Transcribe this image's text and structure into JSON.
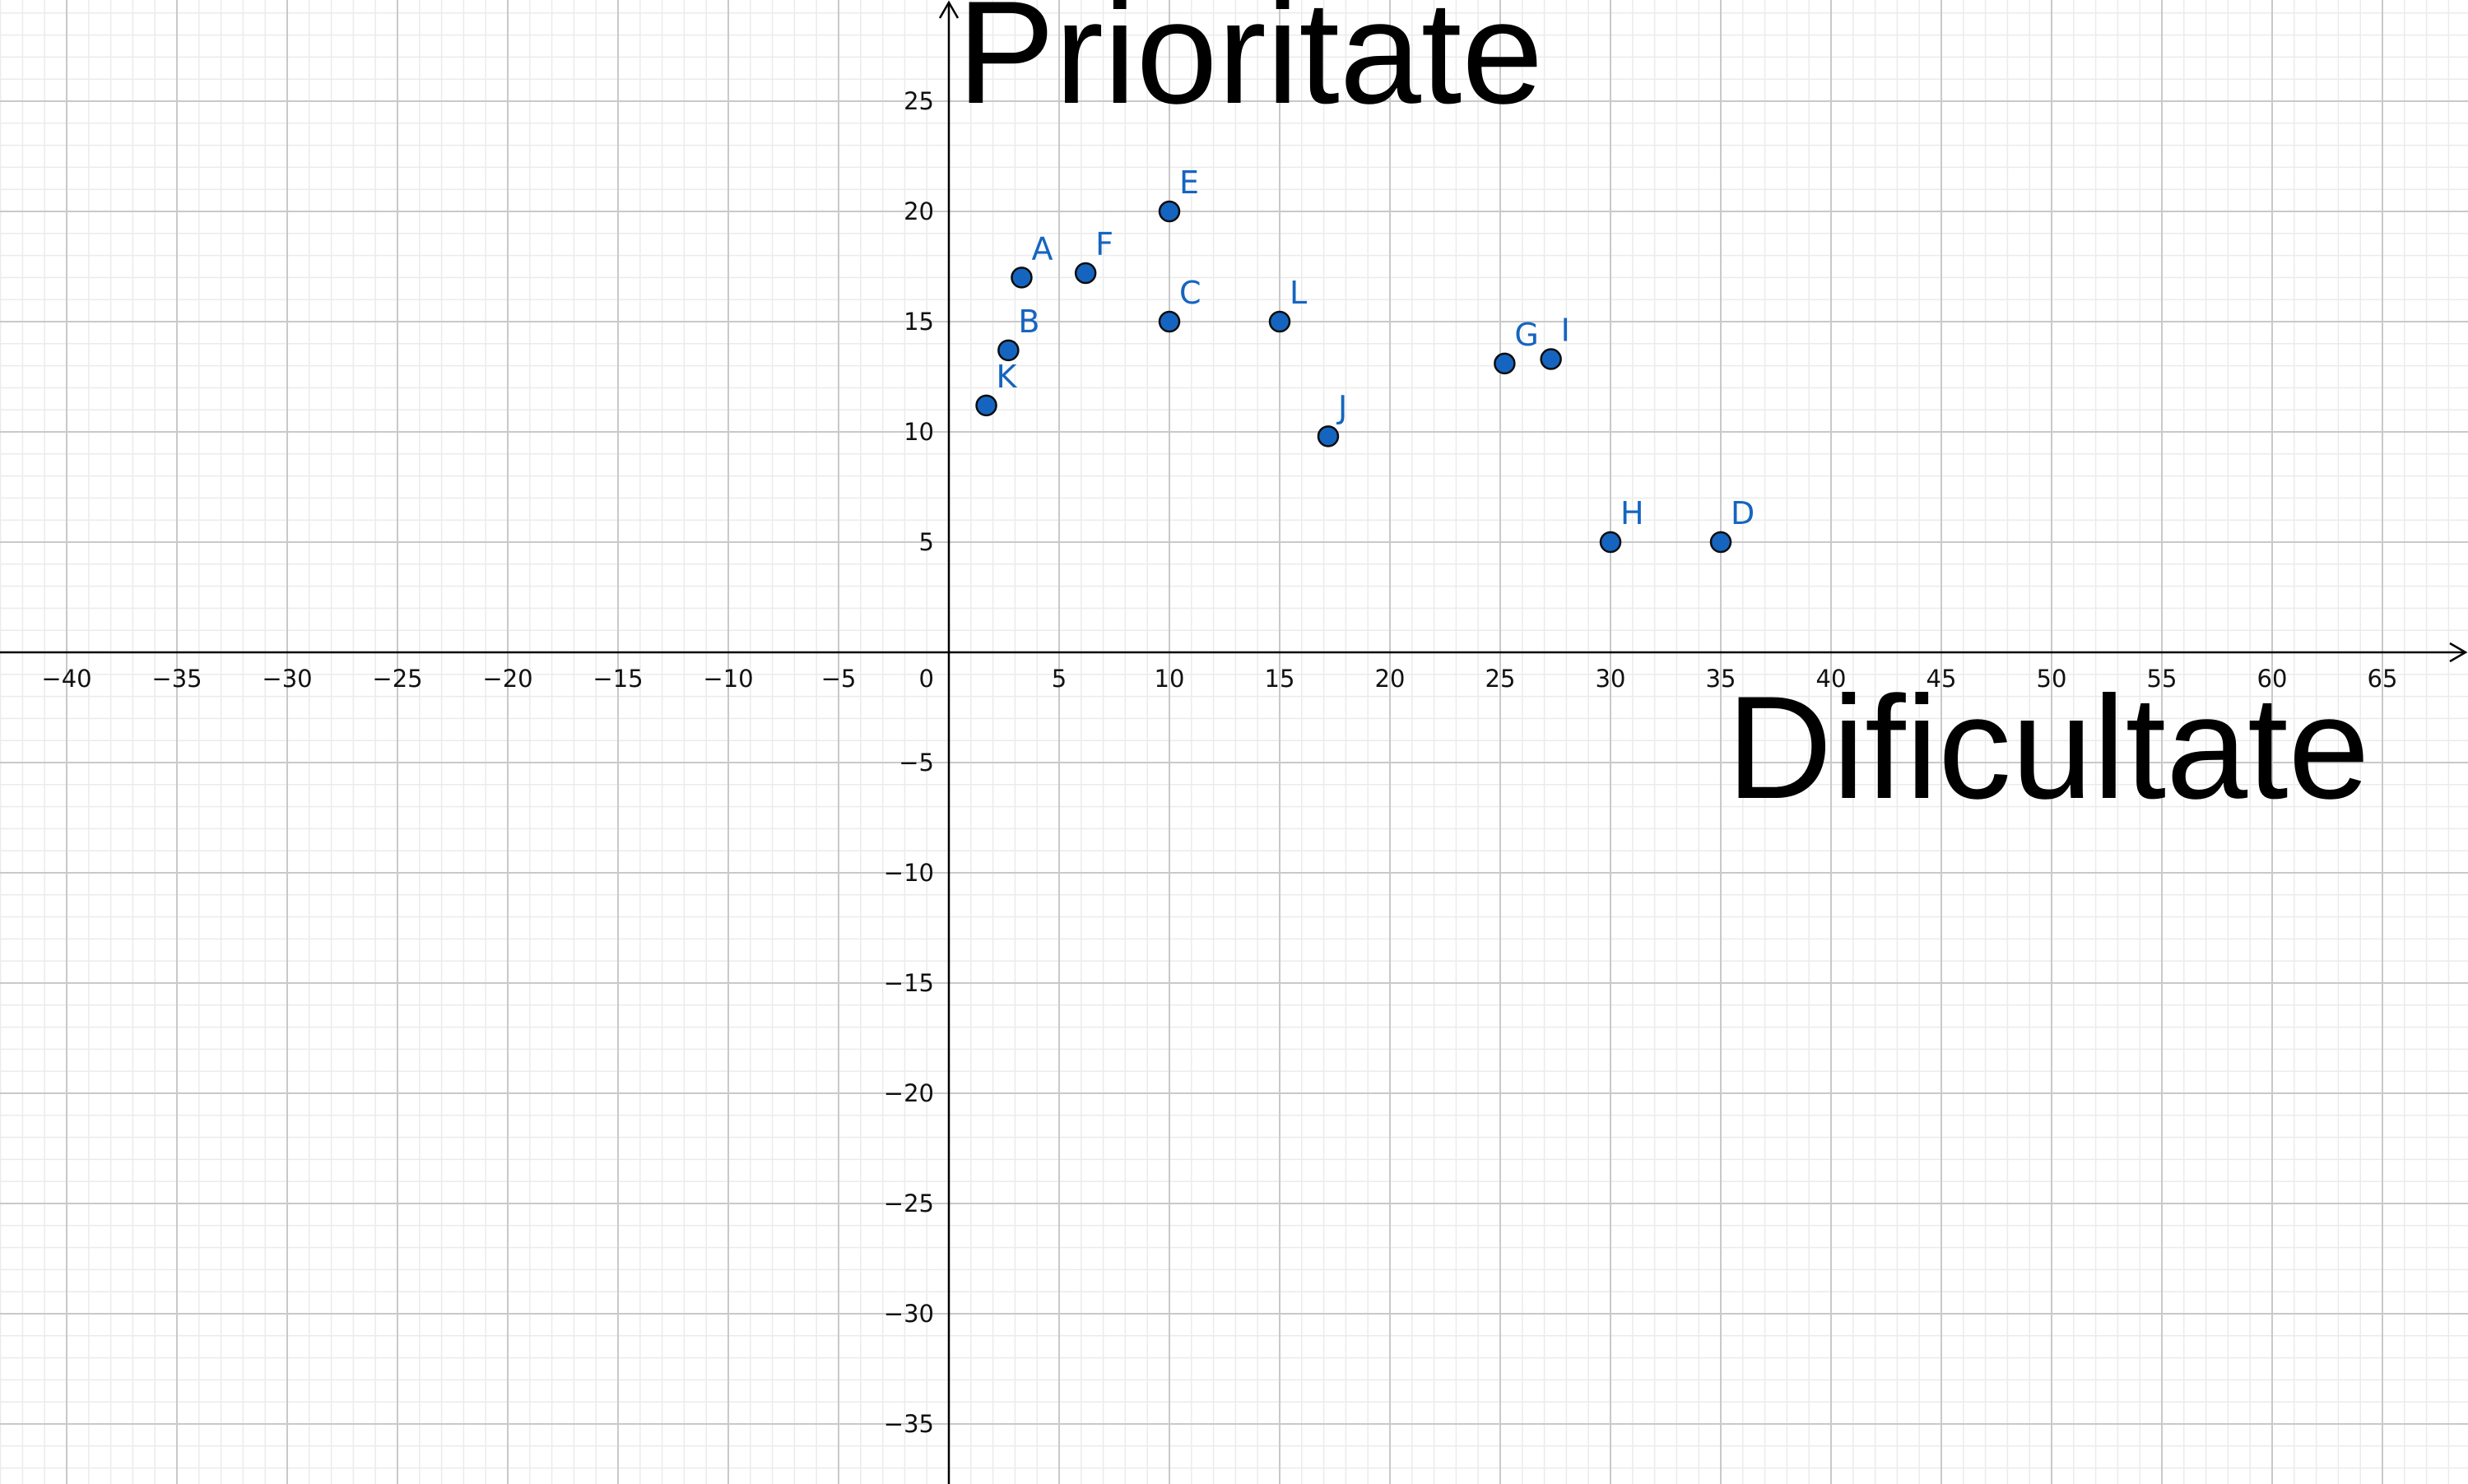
{
  "chart_data": {
    "type": "scatter",
    "title": "",
    "xlabel": "Dificultate",
    "ylabel": "Prioritate",
    "xlim": [
      -43,
      69.5
    ],
    "ylim": [
      -38.3,
      29.4
    ],
    "grid": true,
    "x_ticks": [
      -40,
      -35,
      -30,
      -25,
      -20,
      -15,
      -10,
      -5,
      5,
      10,
      15,
      20,
      25,
      30,
      35,
      40,
      45,
      50,
      55,
      60,
      65
    ],
    "y_ticks": [
      25,
      20,
      15,
      10,
      5,
      -5,
      -10,
      -15,
      -20,
      -25,
      -30,
      -35
    ],
    "origin_label": "0",
    "points": [
      {
        "label": "A",
        "x": 3.3,
        "y": 17
      },
      {
        "label": "B",
        "x": 2.7,
        "y": 13.7
      },
      {
        "label": "C",
        "x": 10,
        "y": 15
      },
      {
        "label": "D",
        "x": 35,
        "y": 5
      },
      {
        "label": "E",
        "x": 10,
        "y": 20
      },
      {
        "label": "F",
        "x": 6.2,
        "y": 17.2
      },
      {
        "label": "G",
        "x": 25.2,
        "y": 13.1
      },
      {
        "label": "H",
        "x": 30,
        "y": 5
      },
      {
        "label": "I",
        "x": 27.3,
        "y": 13.3
      },
      {
        "label": "J",
        "x": 17.2,
        "y": 9.8
      },
      {
        "label": "K",
        "x": 1.7,
        "y": 11.2
      },
      {
        "label": "L",
        "x": 15,
        "y": 15
      }
    ],
    "point_color": "#1565c0",
    "grid_major_color": "#c9c9c9",
    "grid_minor_color": "#ebebeb"
  }
}
